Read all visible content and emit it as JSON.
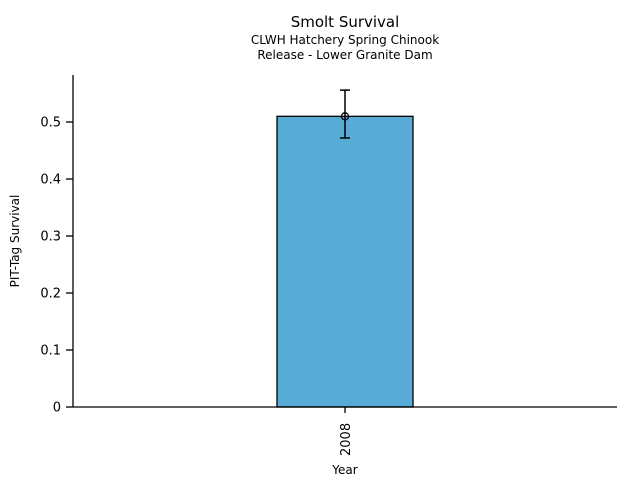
{
  "chart_data": {
    "type": "bar",
    "title": "Smolt Survival",
    "subtitle_line1": "CLWH Hatchery Spring Chinook",
    "subtitle_line2": "Release - Lower Granite Dam",
    "xlabel": "Year",
    "ylabel": "PIT-Tag Survival",
    "categories": [
      "2008"
    ],
    "values": [
      0.51
    ],
    "error_bars": {
      "lower": [
        0.472
      ],
      "upper": [
        0.556
      ]
    },
    "yticks": [
      0,
      0.1,
      0.2,
      0.3,
      0.4,
      0.5
    ],
    "yticklabels": [
      "0",
      "0.1",
      "0.2",
      "0.3",
      "0.4",
      "0.5"
    ],
    "ylim": [
      0,
      0.5825
    ],
    "grid": false,
    "legend_position": "none",
    "marker": "open-circle",
    "bar_color": "#58ABD4",
    "bar_edge_color": "#000000",
    "axis_color": "#000000",
    "text_color": "#000000"
  }
}
